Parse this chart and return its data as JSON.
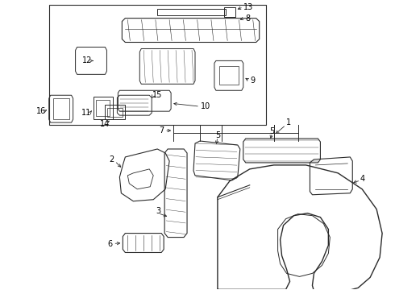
{
  "background_color": "#ffffff",
  "line_color": "#2a2a2a",
  "label_color": "#000000",
  "fig_width": 4.9,
  "fig_height": 3.6,
  "dpi": 100
}
